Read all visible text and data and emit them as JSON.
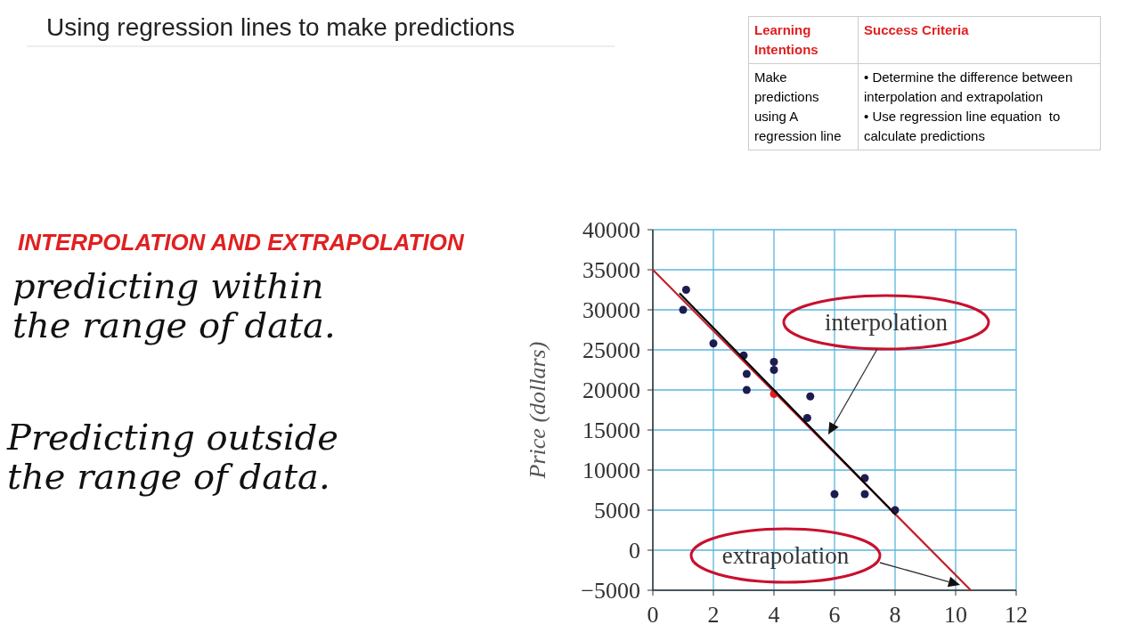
{
  "chart_data": {
    "type": "scatter",
    "title": "Using regression lines to make predictions",
    "subtitle": "INTERPOLATION AND EXTRAPOLATION",
    "ylabel": "Price (dollars)",
    "xlim": [
      0,
      12
    ],
    "xticks": [
      0,
      2,
      4,
      6,
      8,
      10,
      12
    ],
    "ylim": [
      -5000,
      40000
    ],
    "yticks": [
      -5000,
      0,
      5000,
      10000,
      15000,
      20000,
      25000,
      30000,
      35000,
      40000
    ],
    "grid": true,
    "marker": "circle",
    "series": [
      {
        "color": "#1c1c50",
        "x": [
          1.1,
          1.0,
          2.0,
          3.0,
          3.1,
          3.1,
          4.0,
          4.0,
          5.2,
          5.1,
          6.0,
          7.0,
          7.0,
          8.0
        ],
        "values": [
          32500,
          30000,
          25800,
          24300,
          22000,
          20000,
          23500,
          22500,
          19200,
          16500,
          7000,
          9000,
          7000,
          5000
        ]
      },
      {
        "color": "#e02020",
        "x": [
          4.0
        ],
        "values": [
          19500
        ]
      },
      {
        "type": "line",
        "marker": "none",
        "color": "#c0202a",
        "x": [
          0,
          10.5
        ],
        "values": [
          35000,
          -5000
        ]
      },
      {
        "type": "line",
        "marker": "none",
        "color": "#000000",
        "x": [
          0.9,
          8.0
        ],
        "values": [
          32000,
          4500
        ]
      }
    ],
    "annotations": [
      "interpolation",
      "extrapolation",
      "Learning Intentions",
      "Success Criteria",
      "Make predictions using A regression line",
      "• Determine the difference between interpolation and extrapolation\n• Use regression line equation  to calculate predictions",
      "predicting within\nthe range of data.",
      "Predicting outside\nthe range of data."
    ]
  }
}
